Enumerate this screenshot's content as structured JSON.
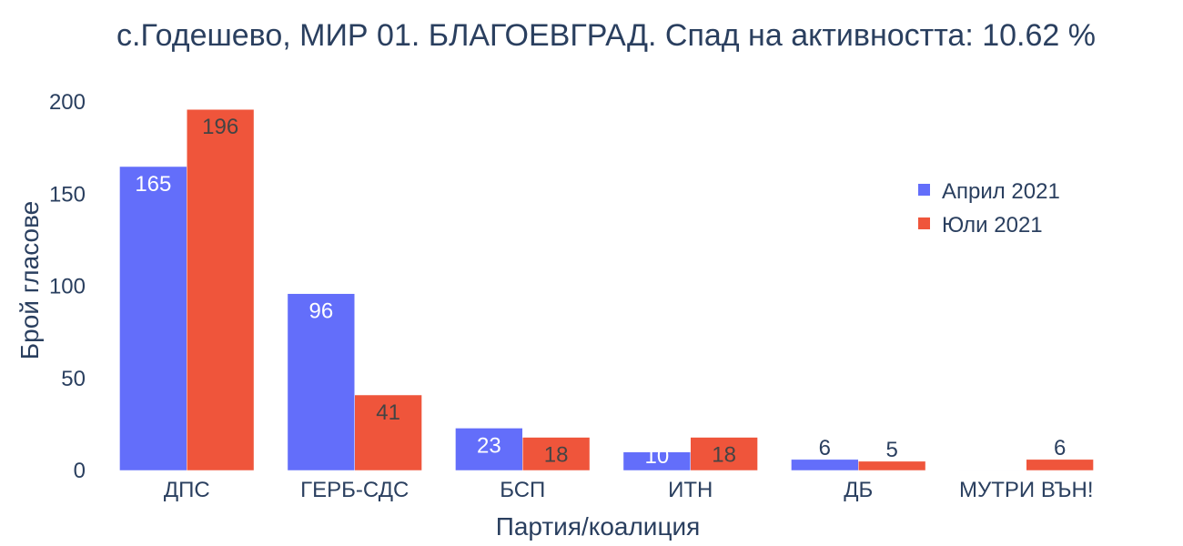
{
  "chart_data": {
    "type": "bar",
    "title": "с.Годешево, МИР 01. БЛАГОЕВГРАД. Спад на активността: 10.62 %",
    "xlabel": "Партия/коалиция",
    "ylabel": "Брой гласове",
    "categories": [
      "ДПС",
      "ГЕРБ-СДС",
      "БСП",
      "ИТН",
      "ДБ",
      "МУТРИ ВЪН!"
    ],
    "series": [
      {
        "name": "Април 2021",
        "color": "#636efa",
        "values": [
          165,
          96,
          23,
          10,
          6,
          0
        ],
        "labels": [
          "165",
          "96",
          "23",
          "10",
          "6",
          ""
        ]
      },
      {
        "name": "Юли 2021",
        "color": "#ef553b",
        "values": [
          196,
          41,
          18,
          18,
          5,
          6
        ],
        "labels": [
          "196",
          "41",
          "18",
          "18",
          "5",
          "6"
        ]
      }
    ],
    "ylim": [
      0,
      206
    ],
    "yticks": [
      0,
      50,
      100,
      150,
      200
    ],
    "grid": false,
    "legend_position": "top-right"
  }
}
